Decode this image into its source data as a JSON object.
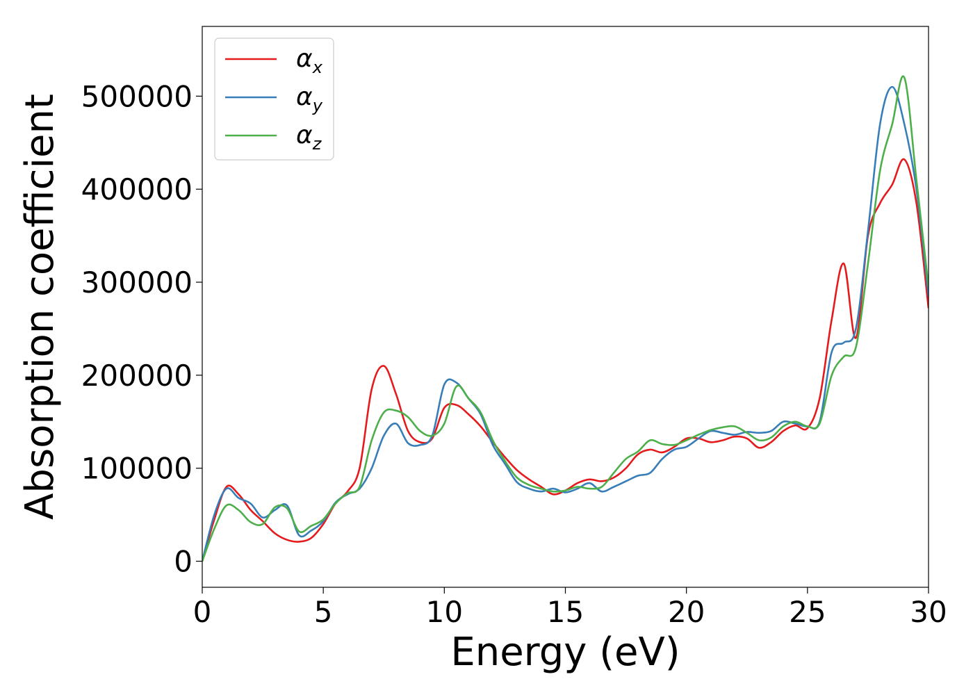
{
  "chart_data": {
    "type": "line",
    "title": "",
    "xlabel": "Energy (eV)",
    "ylabel": "Absorption coefficient",
    "xlim": [
      0,
      30
    ],
    "ylim": [
      -28000,
      575000
    ],
    "x_ticks": [
      "0",
      "5",
      "10",
      "15",
      "20",
      "25",
      "30"
    ],
    "y_ticks": [
      "0",
      "100000",
      "200000",
      "300000",
      "400000",
      "500000"
    ],
    "x_tick_values": [
      0,
      5,
      10,
      15,
      20,
      25,
      30
    ],
    "y_tick_values": [
      0,
      100000,
      200000,
      300000,
      400000,
      500000
    ],
    "grid": false,
    "legend_position": "top-left",
    "x": [
      0,
      0.5,
      1,
      1.5,
      2,
      2.5,
      3,
      3.5,
      4,
      4.5,
      5,
      5.5,
      6,
      6.5,
      7,
      7.5,
      8,
      8.5,
      9,
      9.5,
      10,
      10.5,
      11,
      11.5,
      12,
      12.5,
      13,
      13.5,
      14,
      14.5,
      15,
      15.5,
      16,
      16.5,
      17,
      17.5,
      18,
      18.5,
      19,
      19.5,
      20,
      20.5,
      21,
      21.5,
      22,
      22.5,
      23,
      23.5,
      24,
      24.5,
      25,
      25.5,
      26,
      26.5,
      27,
      27.5,
      28,
      28.5,
      29,
      29.5,
      30
    ],
    "series": [
      {
        "name": "α",
        "subscript": "x",
        "color": "#e41a1c",
        "values": [
          0,
          45000,
          80000,
          72000,
          55000,
          43000,
          30000,
          23000,
          21000,
          25000,
          40000,
          62000,
          75000,
          100000,
          185000,
          210000,
          180000,
          140000,
          128000,
          132000,
          165000,
          168000,
          158000,
          145000,
          128000,
          112000,
          98000,
          88000,
          80000,
          72000,
          76000,
          84000,
          88000,
          86000,
          90000,
          100000,
          115000,
          120000,
          117000,
          123000,
          132000,
          132000,
          128000,
          130000,
          134000,
          132000,
          122000,
          128000,
          140000,
          146000,
          143000,
          175000,
          260000,
          320000,
          240000,
          350000,
          385000,
          405000,
          432000,
          385000,
          272000
        ]
      },
      {
        "name": "α",
        "subscript": "y",
        "color": "#377eb8",
        "values": [
          0,
          50000,
          78000,
          68000,
          62000,
          47000,
          55000,
          60000,
          28000,
          33000,
          43000,
          63000,
          72000,
          78000,
          100000,
          135000,
          148000,
          127000,
          125000,
          135000,
          190000,
          192000,
          175000,
          158000,
          125000,
          105000,
          85000,
          78000,
          75000,
          78000,
          74000,
          78000,
          84000,
          75000,
          80000,
          86000,
          92000,
          95000,
          110000,
          120000,
          123000,
          132000,
          140000,
          138000,
          136000,
          139000,
          138000,
          140000,
          150000,
          148000,
          145000,
          150000,
          225000,
          235000,
          250000,
          355000,
          470000,
          510000,
          470000,
          400000,
          285000
        ]
      },
      {
        "name": "α",
        "subscript": "z",
        "color": "#4daf4a",
        "values": [
          0,
          35000,
          60000,
          55000,
          42000,
          40000,
          58000,
          57000,
          32000,
          38000,
          45000,
          62000,
          73000,
          80000,
          130000,
          160000,
          162000,
          155000,
          140000,
          135000,
          148000,
          188000,
          175000,
          160000,
          130000,
          108000,
          90000,
          82000,
          78000,
          75000,
          76000,
          80000,
          78000,
          80000,
          95000,
          110000,
          118000,
          130000,
          126000,
          125000,
          130000,
          136000,
          141000,
          144000,
          145000,
          138000,
          130000,
          133000,
          145000,
          150000,
          145000,
          148000,
          200000,
          220000,
          230000,
          320000,
          420000,
          470000,
          520000,
          410000,
          295000
        ]
      }
    ]
  }
}
